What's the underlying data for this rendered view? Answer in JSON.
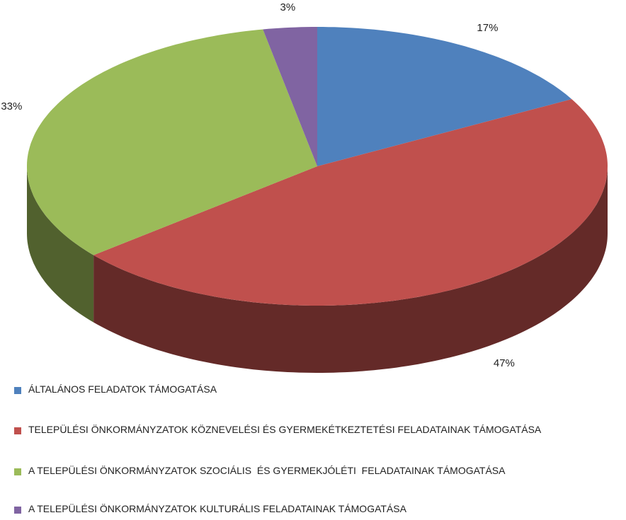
{
  "chart_data": {
    "type": "pie3d",
    "categories": [
      "ÁLTALÁNOS FELADATOK TÁMOGATÁSA",
      "TELEPÜLÉSI ÖNKORMÁNYZATOK KÖZNEVELÉSI ÉS GYERMEKÉTKEZTETÉSI FELADATAINAK TÁMOGATÁSA",
      "A TELEPÜLÉSI ÖNKORMÁNYZATOK SZOCIÁLIS  ÉS GYERMEKJÓLÉTI  FELADATAINAK TÁMOGATÁSA",
      "A TELEPÜLÉSI ÖNKORMÁNYZATOK KULTURÁLIS FELADATAINAK TÁMOGATÁSA"
    ],
    "values": [
      17,
      47,
      33,
      3
    ],
    "value_labels": [
      "17%",
      "47%",
      "33%",
      "3%"
    ],
    "colors": [
      "#4f81bd",
      "#c0504d",
      "#9bbb59",
      "#8064a2"
    ],
    "legend": "bottom"
  }
}
